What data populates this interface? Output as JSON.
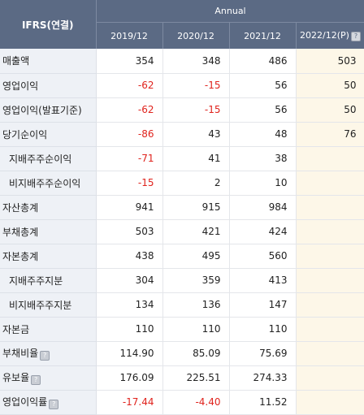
{
  "header": {
    "corner": "IFRS(연결)",
    "group": "Annual",
    "periods": [
      "2019/12",
      "2020/12",
      "2021/12",
      "2022/12(P)"
    ],
    "help_glyph": "?"
  },
  "rows": [
    {
      "label": "매출액",
      "sub": false,
      "help": false,
      "values": [
        "354",
        "348",
        "486",
        "503"
      ]
    },
    {
      "label": "영업이익",
      "sub": false,
      "help": false,
      "values": [
        "-62",
        "-15",
        "56",
        "50"
      ]
    },
    {
      "label": "영업이익(발표기준)",
      "sub": false,
      "help": false,
      "values": [
        "-62",
        "-15",
        "56",
        "50"
      ]
    },
    {
      "label": "당기순이익",
      "sub": false,
      "help": false,
      "values": [
        "-86",
        "43",
        "48",
        "76"
      ]
    },
    {
      "label": "지배주주순이익",
      "sub": true,
      "help": false,
      "values": [
        "-71",
        "41",
        "38",
        ""
      ]
    },
    {
      "label": "비지배주주순이익",
      "sub": true,
      "help": false,
      "values": [
        "-15",
        "2",
        "10",
        ""
      ]
    },
    {
      "label": "자산총계",
      "sub": false,
      "help": false,
      "values": [
        "941",
        "915",
        "984",
        ""
      ]
    },
    {
      "label": "부채총계",
      "sub": false,
      "help": false,
      "values": [
        "503",
        "421",
        "424",
        ""
      ]
    },
    {
      "label": "자본총계",
      "sub": false,
      "help": false,
      "values": [
        "438",
        "495",
        "560",
        ""
      ]
    },
    {
      "label": "지배주주지분",
      "sub": true,
      "help": false,
      "values": [
        "304",
        "359",
        "413",
        ""
      ]
    },
    {
      "label": "비지배주주지분",
      "sub": true,
      "help": false,
      "values": [
        "134",
        "136",
        "147",
        ""
      ]
    },
    {
      "label": "자본금",
      "sub": false,
      "help": false,
      "values": [
        "110",
        "110",
        "110",
        ""
      ]
    },
    {
      "label": "부채비율",
      "sub": false,
      "help": true,
      "values": [
        "114.90",
        "85.09",
        "75.69",
        ""
      ]
    },
    {
      "label": "유보율",
      "sub": false,
      "help": true,
      "values": [
        "176.09",
        "225.51",
        "274.33",
        ""
      ]
    },
    {
      "label": "영업이익률",
      "sub": false,
      "help": true,
      "values": [
        "-17.44",
        "-4.40",
        "11.52",
        ""
      ]
    }
  ]
}
